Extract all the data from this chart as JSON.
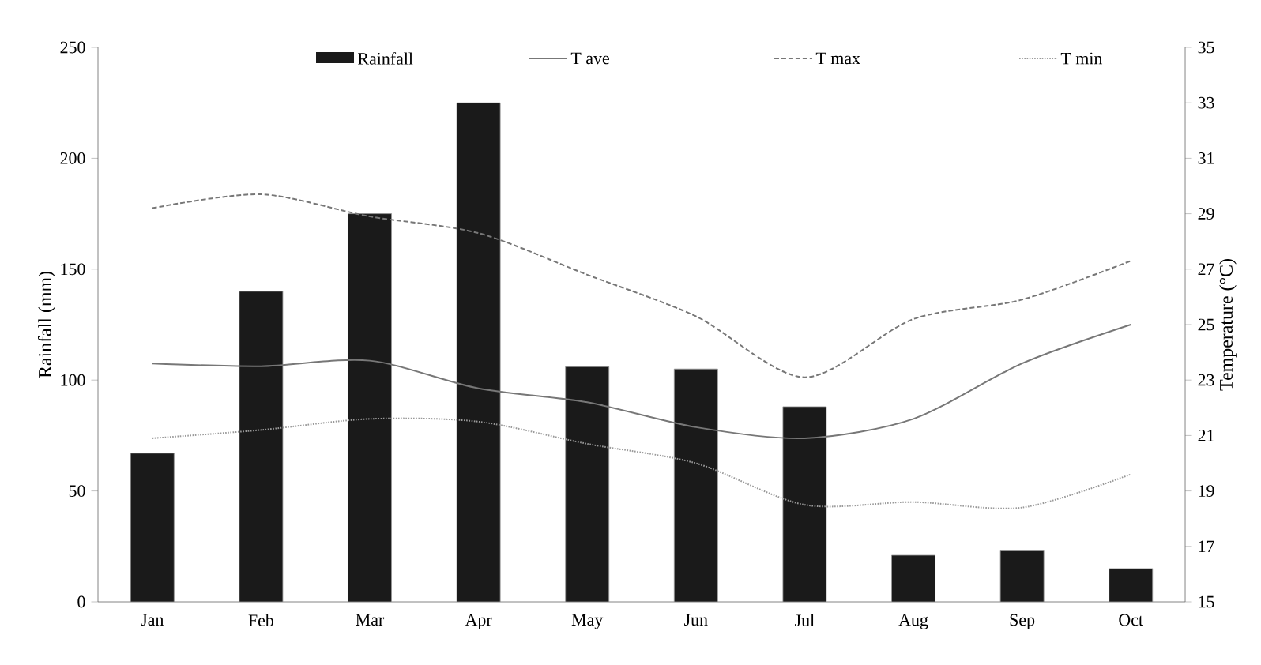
{
  "chart_data": {
    "type": "bar",
    "ylabel": "Rainfall (mm)",
    "y2label": "Temperature (°C)",
    "categories": [
      "Jan",
      "Feb",
      "Mar",
      "Apr",
      "May",
      "Jun",
      "Jul",
      "Aug",
      "Sep",
      "Oct"
    ],
    "ylim": [
      0,
      250
    ],
    "yticks": [
      0,
      50,
      100,
      150,
      200,
      250
    ],
    "y2lim": [
      15,
      35
    ],
    "y2ticks": [
      15,
      17,
      19,
      21,
      23,
      25,
      27,
      29,
      31,
      33,
      35
    ],
    "legend": "top",
    "grid": false,
    "series": [
      {
        "name": "Rainfall",
        "color": "#1a1a1a",
        "values": [
          67,
          140,
          175,
          225,
          106,
          105,
          88,
          21,
          23,
          15
        ]
      },
      {
        "name": "T ave",
        "type": "line",
        "axis": "y2",
        "color": "#777777",
        "line_style": "solid",
        "values": [
          23.6,
          23.5,
          23.7,
          22.7,
          22.2,
          21.3,
          20.9,
          21.6,
          23.6,
          25.0
        ]
      },
      {
        "name": "T max",
        "type": "line",
        "axis": "y2",
        "color": "#777777",
        "line_style": "dashed",
        "values": [
          29.2,
          29.7,
          28.9,
          28.3,
          26.8,
          25.3,
          23.1,
          25.2,
          25.9,
          27.3
        ]
      },
      {
        "name": "T min",
        "type": "line",
        "axis": "y2",
        "color": "#999999",
        "line_style": "dotted",
        "values": [
          20.9,
          21.2,
          21.6,
          21.5,
          20.7,
          20.0,
          18.5,
          18.6,
          18.4,
          19.6
        ]
      }
    ]
  }
}
